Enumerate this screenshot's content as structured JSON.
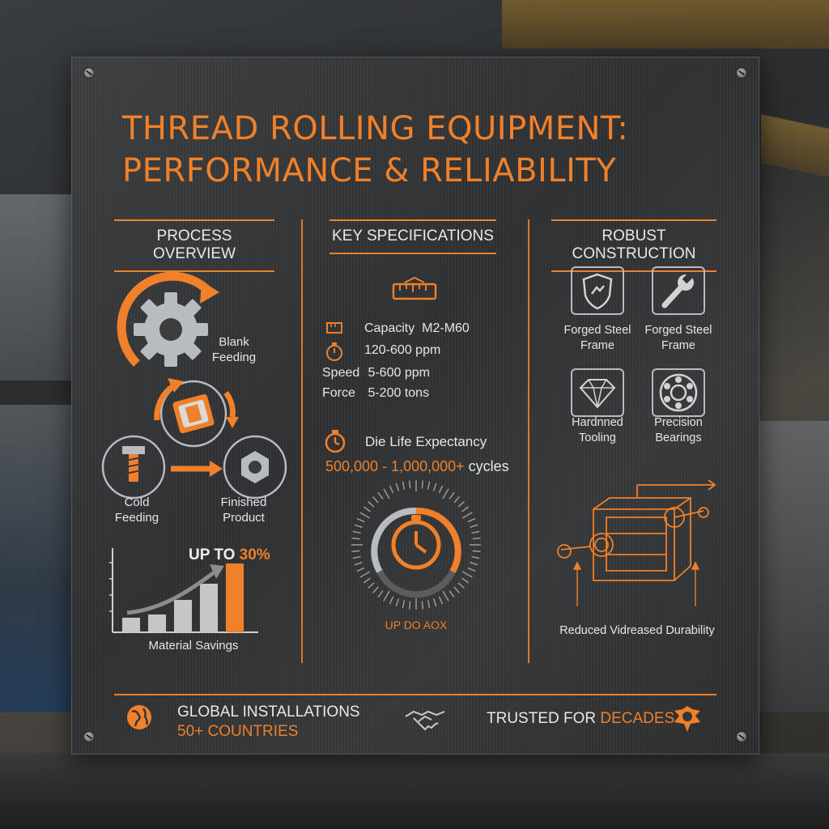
{
  "title": {
    "line1": "THREAD ROLLING EQUIPMENT:",
    "line2": "PERFORMANCE & RELIABILITY"
  },
  "colors": {
    "accent": "#f0802a",
    "text": "#e6e6e6",
    "panel": "#333537"
  },
  "process": {
    "heading": "PROCESS OVERVIEW",
    "blank": "Blank\nFeeding",
    "cold": "Cold\nFeeding",
    "finished": "Finished\nProduct",
    "savings_prefix": "UP TO",
    "savings_value": "30%",
    "savings_label": "Material Savings",
    "savings_bars": [
      0.18,
      0.22,
      0.4,
      0.6,
      0.85
    ]
  },
  "specs": {
    "heading": "KEY SPECIFICATIONS",
    "rows": [
      {
        "key": "Capacity",
        "value": "M2-M60",
        "icon": "ruler-icon"
      },
      {
        "key": "",
        "value": "120-600 ppm",
        "icon": "stopwatch-icon"
      },
      {
        "key": "Speed",
        "value": "5-600 ppm",
        "icon": ""
      },
      {
        "key": "Force",
        "value": "5-200 tons",
        "icon": ""
      }
    ],
    "die_life_label": "Die Life Expectancy",
    "die_life_value": "500,000 - 1,000,000+",
    "die_life_unit": "cycles",
    "gauge_caption": "UP DO AOX"
  },
  "construction": {
    "heading": "ROBUST CONSTRUCTION",
    "items": [
      {
        "label": "Forged Steel\nFrame",
        "icon": "shield-icon"
      },
      {
        "label": "Forged Steel\nFrame",
        "icon": "wrench-icon"
      },
      {
        "label": "Hardnned\nTooling",
        "icon": "diamond-icon"
      },
      {
        "label": "Precision\nBearings",
        "icon": "bearing-icon"
      }
    ],
    "diagram_caption": "Reduced Vidreased Durability"
  },
  "footer": {
    "global_title": "GLOBAL INSTALLATIONS",
    "global_value": "50+ COUNTRIES",
    "trusted_prefix": "TRUSTED FOR",
    "trusted_value": "DECADES"
  }
}
